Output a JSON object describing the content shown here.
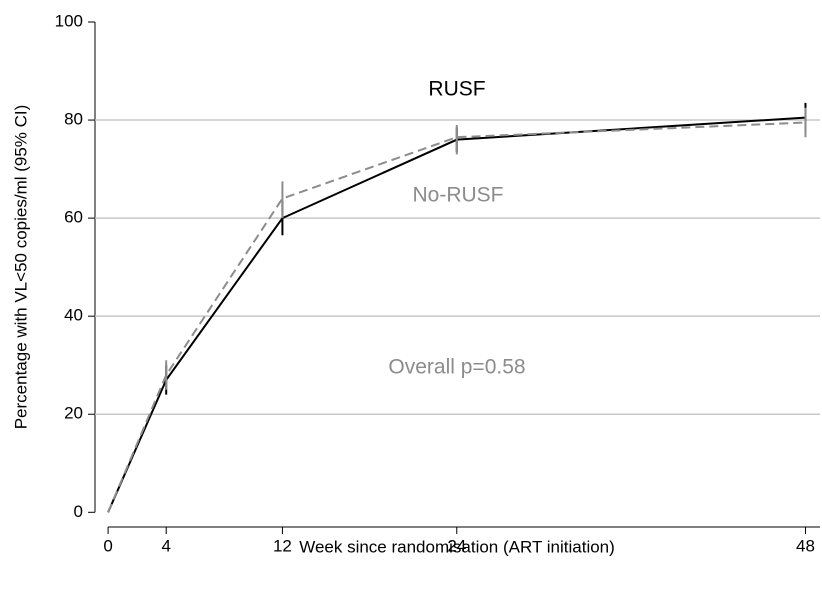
{
  "chart_data": {
    "type": "line",
    "x_label": "Week since randomisation (ART initiation)",
    "y_label": "Percentage with VL<50 copies/ml (95% CI)",
    "x": [
      0,
      4,
      12,
      24,
      48
    ],
    "series": [
      {
        "name": "RUSF",
        "color": "#000000",
        "dash": false,
        "values": [
          0,
          27,
          60,
          76,
          80.5
        ],
        "lower": [
          0,
          24,
          56.5,
          73.5,
          77.5
        ],
        "upper": [
          0,
          30,
          63.5,
          78.5,
          83.5
        ]
      },
      {
        "name": "No-RUSF",
        "color": "#8c8c8c",
        "dash": true,
        "values": [
          0,
          28,
          64,
          76.5,
          79.5
        ],
        "lower": [
          0,
          25,
          60,
          73,
          76.5
        ],
        "upper": [
          0,
          31,
          67.5,
          79,
          82.5
        ]
      }
    ],
    "annotations": [
      "Overall p=0.58"
    ],
    "xlim": [
      -0.9,
      49
    ],
    "xticks": [
      0,
      4,
      12,
      24,
      48
    ],
    "ylim": [
      -3,
      100
    ],
    "yticks": [
      0,
      20,
      40,
      60,
      80,
      100
    ],
    "grid": true
  }
}
